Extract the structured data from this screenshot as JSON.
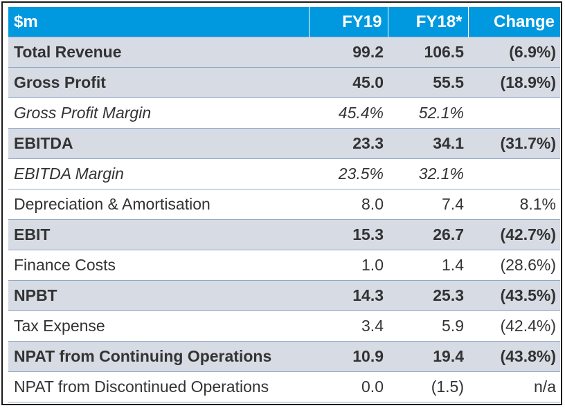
{
  "header": {
    "label": "$m",
    "fy19": "FY19",
    "fy18": "FY18*",
    "change": "Change"
  },
  "rows": [
    {
      "label": "Total Revenue",
      "fy19": "99.2",
      "fy18": "106.5",
      "change": "(6.9%)"
    },
    {
      "label": "Gross Profit",
      "fy19": "45.0",
      "fy18": "55.5",
      "change": "(18.9%)"
    },
    {
      "label": "Gross Profit Margin",
      "fy19": "45.4%",
      "fy18": "52.1%",
      "change": ""
    },
    {
      "label": "EBITDA",
      "fy19": "23.3",
      "fy18": "34.1",
      "change": "(31.7%)"
    },
    {
      "label": "EBITDA Margin",
      "fy19": "23.5%",
      "fy18": "32.1%",
      "change": ""
    },
    {
      "label": "Depreciation & Amortisation",
      "fy19": "8.0",
      "fy18": "7.4",
      "change": "8.1%"
    },
    {
      "label": "EBIT",
      "fy19": "15.3",
      "fy18": "26.7",
      "change": "(42.7%)"
    },
    {
      "label": "Finance Costs",
      "fy19": "1.0",
      "fy18": "1.4",
      "change": "(28.6%)"
    },
    {
      "label": "NPBT",
      "fy19": "14.3",
      "fy18": "25.3",
      "change": "(43.5%)"
    },
    {
      "label": "Tax Expense",
      "fy19": "3.4",
      "fy18": "5.9",
      "change": "(42.4%)"
    },
    {
      "label": "NPAT from Continuing Operations",
      "fy19": "10.9",
      "fy18": "19.4",
      "change": "(43.8%)"
    },
    {
      "label": "NPAT from Discontinued Operations",
      "fy19": "0.0",
      "fy18": "(1.5)",
      "change": "n/a"
    }
  ]
}
